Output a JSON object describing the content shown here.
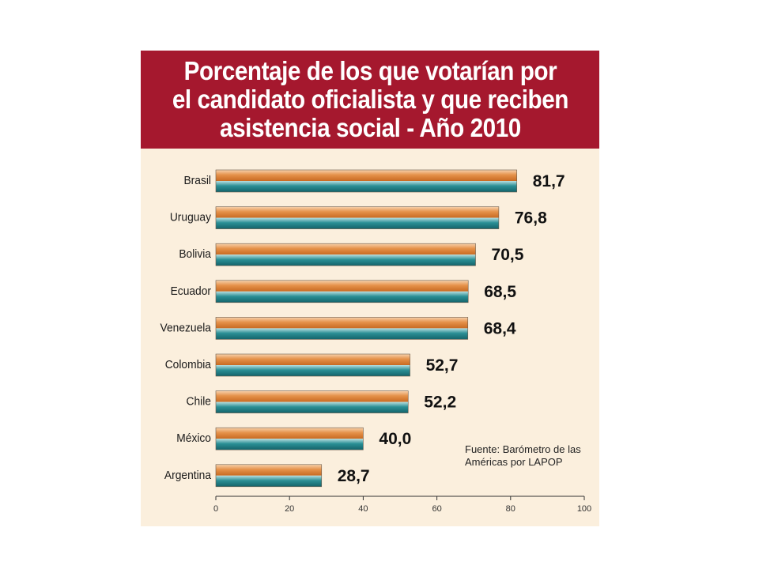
{
  "chart_data": {
    "type": "bar",
    "orientation": "horizontal",
    "title": "Porcentaje de los que votarían por\nel candidato oficialista y que reciben\nasistencia social - Año 2010",
    "categories": [
      "Brasil",
      "Uruguay",
      "Bolivia",
      "Ecuador",
      "Venezuela",
      "Colombia",
      "Chile",
      "México",
      "Argentina"
    ],
    "values": [
      81.7,
      76.8,
      70.5,
      68.5,
      68.4,
      52.7,
      52.2,
      40.0,
      28.7
    ],
    "value_labels": [
      "81,7",
      "76,8",
      "70,5",
      "68,5",
      "68,4",
      "52,7",
      "52,2",
      "40,0",
      "28,7"
    ],
    "xlim": [
      0,
      100
    ],
    "xticks": [
      0,
      20,
      40,
      60,
      80,
      100
    ],
    "xtick_labels": [
      "0",
      "20",
      "40",
      "60",
      "80",
      "100"
    ],
    "source": "Fuente: Barómetro de las\nAméricas por LAPOP",
    "colors": {
      "header": "#a5182e",
      "background": "#fbefdd",
      "bar_top": "#e08a3c",
      "bar_bottom": "#1f7f86"
    }
  }
}
